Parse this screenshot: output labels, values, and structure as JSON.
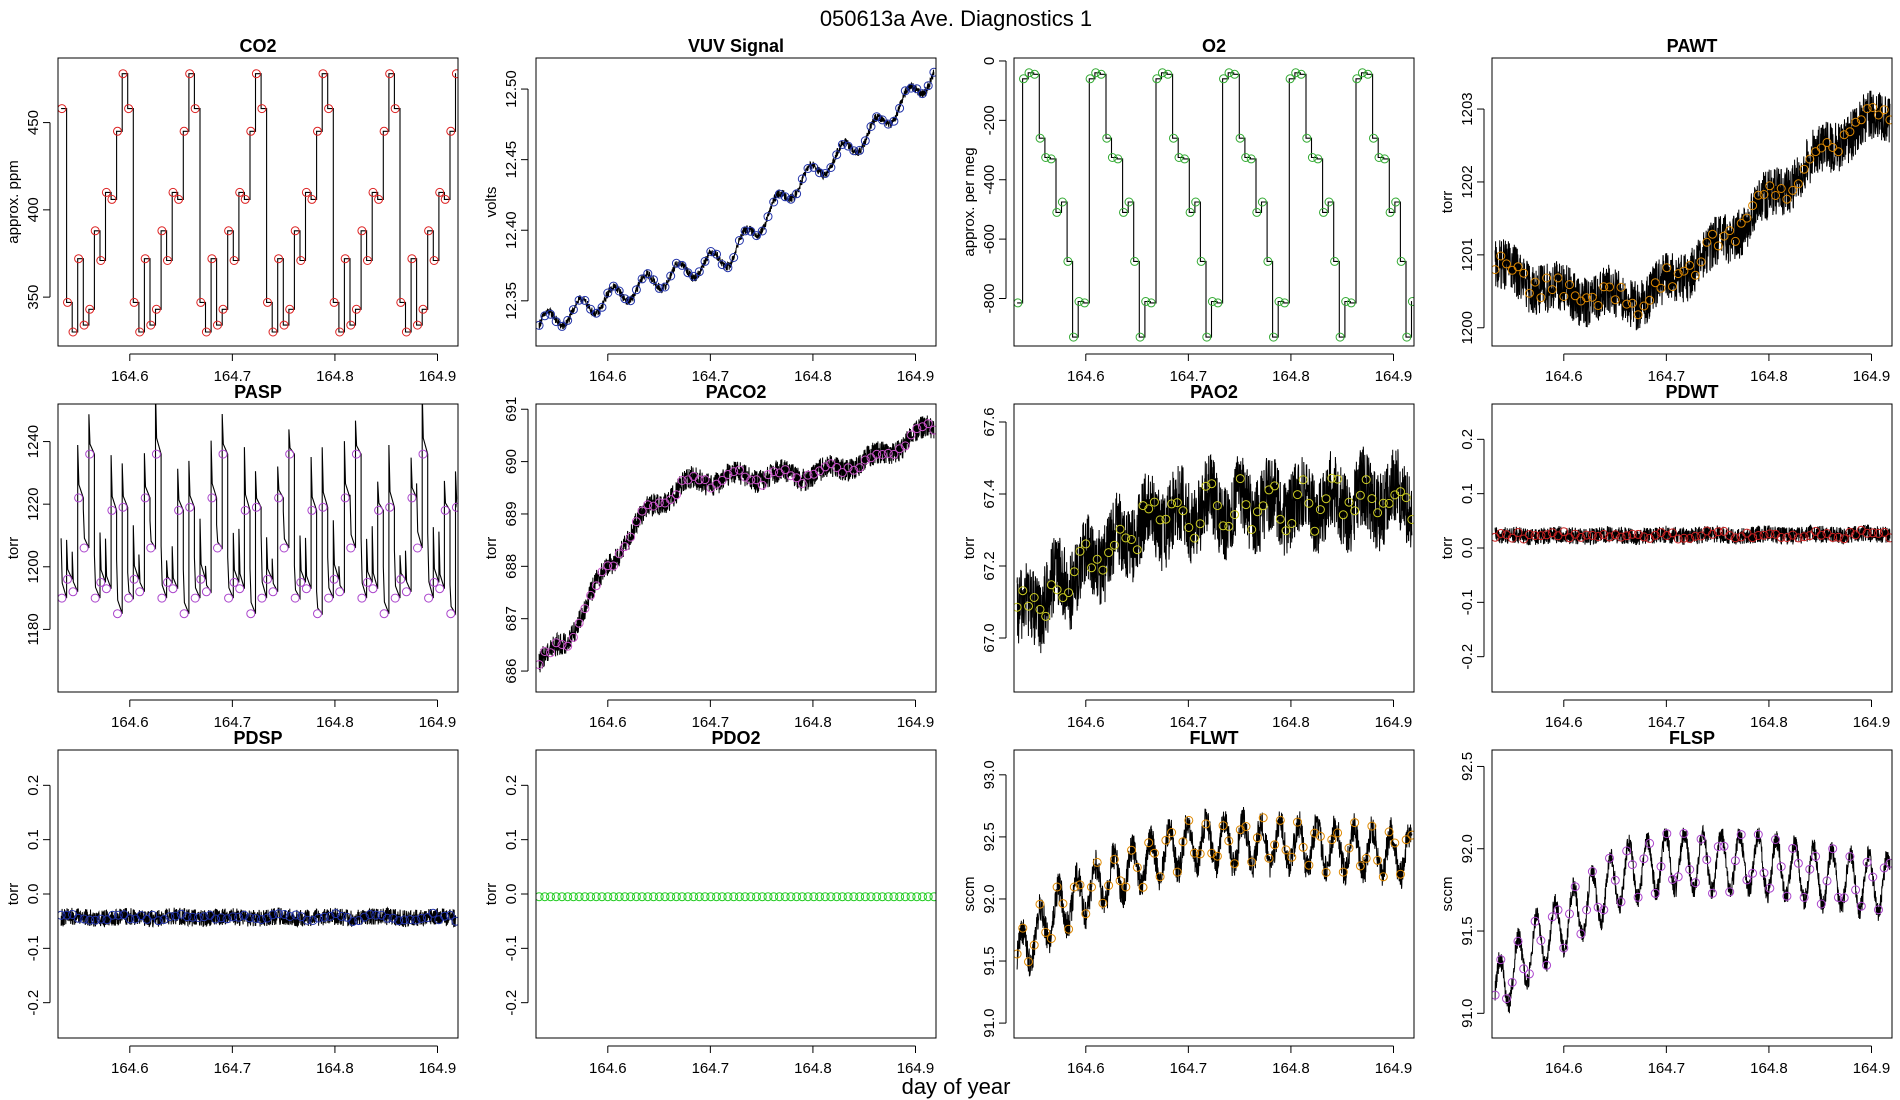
{
  "figure": {
    "title": "050613a   Ave. Diagnostics 1",
    "xlabel": "day of year"
  },
  "chart_data": [
    {
      "type": "line",
      "title": "CO2",
      "ylabel": "approx. ppm",
      "xlim": [
        164.53,
        164.92
      ],
      "ylim": [
        322,
        487
      ],
      "xticks": [
        164.6,
        164.7,
        164.8,
        164.9
      ],
      "yticks": [
        350,
        400,
        450
      ],
      "marker_color": "#dd2222",
      "style": "square",
      "noise": 0,
      "pattern": [
        458,
        347,
        330,
        372,
        334,
        343,
        388,
        371,
        410,
        406,
        445,
        478,
        458
      ]
    },
    {
      "type": "line",
      "title": "VUV Signal",
      "ylabel": "volts",
      "xlim": [
        164.53,
        164.92
      ],
      "ylim": [
        12.318,
        12.522
      ],
      "xticks": [
        164.6,
        164.7,
        164.8,
        164.9
      ],
      "yticks": [
        12.35,
        12.4,
        12.45,
        12.5
      ],
      "marker_color": "#2233aa",
      "style": "band",
      "noise": 0.003,
      "trend": [
        [
          164.53,
          12.332
        ],
        [
          164.65,
          12.365
        ],
        [
          164.72,
          12.382
        ],
        [
          164.78,
          12.43
        ],
        [
          164.85,
          12.465
        ],
        [
          164.92,
          12.512
        ]
      ],
      "wiggle": 0.007,
      "wiggle_period": 0.032
    },
    {
      "type": "line",
      "title": "O2",
      "ylabel": "approx. per meg",
      "xlim": [
        164.53,
        164.92
      ],
      "ylim": [
        -960,
        10
      ],
      "xticks": [
        164.6,
        164.7,
        164.8,
        164.9
      ],
      "yticks": [
        -800,
        -600,
        -400,
        -200,
        0
      ],
      "marker_color": "#33aa33",
      "style": "square",
      "noise": 0,
      "pattern": [
        -815,
        -60,
        -40,
        -45,
        -260,
        -325,
        -330,
        -510,
        -475,
        -675,
        -930,
        -810,
        -60
      ]
    },
    {
      "type": "line",
      "title": "PAWT",
      "ylabel": "torr",
      "xlim": [
        164.53,
        164.92
      ],
      "ylim": [
        1199.75,
        1203.7
      ],
      "xticks": [
        164.6,
        164.7,
        164.8,
        164.9
      ],
      "yticks": [
        1200,
        1201,
        1202,
        1203
      ],
      "marker_color": "#dd8800",
      "style": "band",
      "noise": 0.35,
      "trend": [
        [
          164.53,
          1200.85
        ],
        [
          164.6,
          1200.45
        ],
        [
          164.68,
          1200.4
        ],
        [
          164.74,
          1201.0
        ],
        [
          164.8,
          1201.75
        ],
        [
          164.86,
          1202.5
        ],
        [
          164.92,
          1203.0
        ]
      ],
      "wiggle": 0.1,
      "wiggle_period": 0.05
    },
    {
      "type": "line",
      "title": "PASP",
      "ylabel": "torr",
      "xlim": [
        164.53,
        164.92
      ],
      "ylim": [
        1160,
        1252
      ],
      "xticks": [
        164.6,
        164.7,
        164.8,
        164.9
      ],
      "yticks": [
        1180,
        1200,
        1220,
        1240
      ],
      "marker_color": "#aa44cc",
      "style": "spike",
      "noise": 0,
      "pattern": [
        1190,
        1196,
        1192,
        1222,
        1206,
        1236,
        1190,
        1195,
        1193,
        1218,
        1185,
        1219,
        1168
      ],
      "spike": 14
    },
    {
      "type": "line",
      "title": "PACO2",
      "ylabel": "torr",
      "xlim": [
        164.53,
        164.92
      ],
      "ylim": [
        685.6,
        691.1
      ],
      "xticks": [
        164.6,
        164.7,
        164.8,
        164.9
      ],
      "yticks": [
        686,
        687,
        688,
        689,
        690,
        691
      ],
      "marker_color": "#cc55cc",
      "style": "band",
      "noise": 0.22,
      "trend": [
        [
          164.53,
          686.1
        ],
        [
          164.56,
          686.6
        ],
        [
          164.6,
          688.0
        ],
        [
          164.64,
          689.1
        ],
        [
          164.68,
          689.6
        ],
        [
          164.72,
          689.7
        ],
        [
          164.8,
          689.75
        ],
        [
          164.86,
          690.05
        ],
        [
          164.92,
          690.7
        ]
      ],
      "wiggle": 0.1,
      "wiggle_period": 0.045
    },
    {
      "type": "line",
      "title": "PAO2",
      "ylabel": "torr",
      "xlim": [
        164.53,
        164.92
      ],
      "ylim": [
        66.85,
        67.65
      ],
      "xticks": [
        164.6,
        164.7,
        164.8,
        164.9
      ],
      "yticks": [
        67.0,
        67.2,
        67.4,
        67.6
      ],
      "marker_color": "#cccc22",
      "style": "band",
      "noise": 0.11,
      "trend": [
        [
          164.53,
          67.05
        ],
        [
          164.6,
          67.2
        ],
        [
          164.66,
          67.32
        ],
        [
          164.72,
          67.36
        ],
        [
          164.8,
          67.37
        ],
        [
          164.92,
          67.39
        ]
      ],
      "wiggle": 0.04,
      "wiggle_period": 0.03
    },
    {
      "type": "line",
      "title": "PDWT",
      "ylabel": "torr",
      "xlim": [
        164.53,
        164.92
      ],
      "ylim": [
        -0.265,
        0.265
      ],
      "xticks": [
        164.6,
        164.7,
        164.8,
        164.9
      ],
      "yticks": [
        -0.2,
        -0.1,
        0.0,
        0.1,
        0.2
      ],
      "marker_color": "#cc2222",
      "style": "band",
      "noise": 0.016,
      "trend": [
        [
          164.53,
          0.022
        ],
        [
          164.92,
          0.025
        ]
      ],
      "wiggle": 0.002,
      "wiggle_period": 0.05
    },
    {
      "type": "line",
      "title": "PDSP",
      "ylabel": "torr",
      "xlim": [
        164.53,
        164.92
      ],
      "ylim": [
        -0.265,
        0.265
      ],
      "xticks": [
        164.6,
        164.7,
        164.8,
        164.9
      ],
      "yticks": [
        -0.2,
        -0.1,
        0.0,
        0.1,
        0.2
      ],
      "marker_color": "#2233aa",
      "style": "band",
      "noise": 0.016,
      "trend": [
        [
          164.53,
          -0.043
        ],
        [
          164.92,
          -0.043
        ]
      ],
      "wiggle": 0.002,
      "wiggle_period": 0.05
    },
    {
      "type": "line",
      "title": "PDO2",
      "ylabel": "torr",
      "xlim": [
        164.53,
        164.92
      ],
      "ylim": [
        -0.265,
        0.265
      ],
      "xticks": [
        164.6,
        164.7,
        164.8,
        164.9
      ],
      "yticks": [
        -0.2,
        -0.1,
        0.0,
        0.1,
        0.2
      ],
      "marker_color": "#22cc22",
      "style": "flat",
      "noise": 0,
      "trend": [
        [
          164.53,
          -0.005
        ],
        [
          164.92,
          -0.005
        ]
      ],
      "wiggle": 0,
      "wiggle_period": 0.05
    },
    {
      "type": "line",
      "title": "FLWT",
      "ylabel": "sccm",
      "xlim": [
        164.53,
        164.92
      ],
      "ylim": [
        90.88,
        93.2
      ],
      "xticks": [
        164.6,
        164.7,
        164.8,
        164.9
      ],
      "yticks": [
        91.0,
        91.5,
        92.0,
        92.5,
        93.0
      ],
      "marker_color": "#dd8800",
      "style": "band",
      "noise": 0.12,
      "trend": [
        [
          164.53,
          91.5
        ],
        [
          164.57,
          91.9
        ],
        [
          164.62,
          92.15
        ],
        [
          164.66,
          92.3
        ],
        [
          164.7,
          92.45
        ],
        [
          164.78,
          92.45
        ],
        [
          164.86,
          92.4
        ],
        [
          164.92,
          92.35
        ]
      ],
      "wiggle": 0.18,
      "wiggle_period": 0.018
    },
    {
      "type": "line",
      "title": "FLSP",
      "ylabel": "sccm",
      "xlim": [
        164.53,
        164.92
      ],
      "ylim": [
        90.85,
        92.6
      ],
      "xticks": [
        164.6,
        164.7,
        164.8,
        164.9
      ],
      "yticks": [
        91.0,
        91.5,
        92.0,
        92.5
      ],
      "marker_color": "#aa44cc",
      "style": "band",
      "noise": 0.06,
      "trend": [
        [
          164.53,
          91.1
        ],
        [
          164.57,
          91.4
        ],
        [
          164.62,
          91.65
        ],
        [
          164.66,
          91.85
        ],
        [
          164.7,
          91.92
        ],
        [
          164.78,
          91.92
        ],
        [
          164.86,
          91.82
        ],
        [
          164.92,
          91.78
        ]
      ],
      "wiggle": 0.17,
      "wiggle_period": 0.018
    }
  ]
}
